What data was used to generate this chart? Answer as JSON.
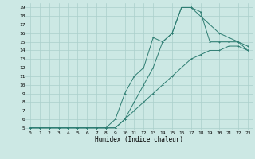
{
  "title": "",
  "xlabel": "Humidex (Indice chaleur)",
  "bg_color": "#cce8e4",
  "grid_color": "#aacfcb",
  "line_color": "#2e7d72",
  "xlim": [
    -0.5,
    23.5
  ],
  "ylim": [
    4.7,
    19.5
  ],
  "xticks": [
    0,
    1,
    2,
    3,
    4,
    5,
    6,
    7,
    8,
    9,
    10,
    11,
    12,
    13,
    14,
    15,
    16,
    17,
    18,
    19,
    20,
    21,
    22,
    23
  ],
  "yticks": [
    5,
    6,
    7,
    8,
    9,
    10,
    11,
    12,
    13,
    14,
    15,
    16,
    17,
    18,
    19
  ],
  "curve1_x": [
    0,
    1,
    2,
    3,
    4,
    5,
    6,
    7,
    8,
    9,
    10,
    11,
    12,
    13,
    14,
    15,
    16,
    17,
    18,
    19,
    20,
    21,
    22,
    23
  ],
  "curve1_y": [
    5,
    5,
    5,
    5,
    5,
    5,
    5,
    5,
    5,
    5,
    6,
    8,
    10,
    12,
    15,
    16,
    19,
    19,
    18,
    17,
    16,
    15.5,
    15,
    14
  ],
  "curve2_x": [
    0,
    1,
    2,
    3,
    4,
    5,
    6,
    7,
    8,
    9,
    10,
    11,
    12,
    13,
    14,
    15,
    16,
    17,
    18,
    19,
    20,
    21,
    22,
    23
  ],
  "curve2_y": [
    5,
    5,
    5,
    5,
    5,
    5,
    5,
    5,
    5,
    6,
    9,
    11,
    12,
    15.5,
    15,
    16,
    19,
    19,
    18.5,
    15,
    15,
    15,
    15,
    14.5
  ],
  "curve3_x": [
    0,
    1,
    2,
    3,
    4,
    5,
    6,
    7,
    8,
    9,
    10,
    11,
    12,
    13,
    14,
    15,
    16,
    17,
    18,
    19,
    20,
    21,
    22,
    23
  ],
  "curve3_y": [
    5,
    5,
    5,
    5,
    5,
    5,
    5,
    5,
    5,
    5,
    6,
    7,
    8,
    9,
    10,
    11,
    12,
    13,
    13.5,
    14,
    14,
    14.5,
    14.5,
    14
  ]
}
